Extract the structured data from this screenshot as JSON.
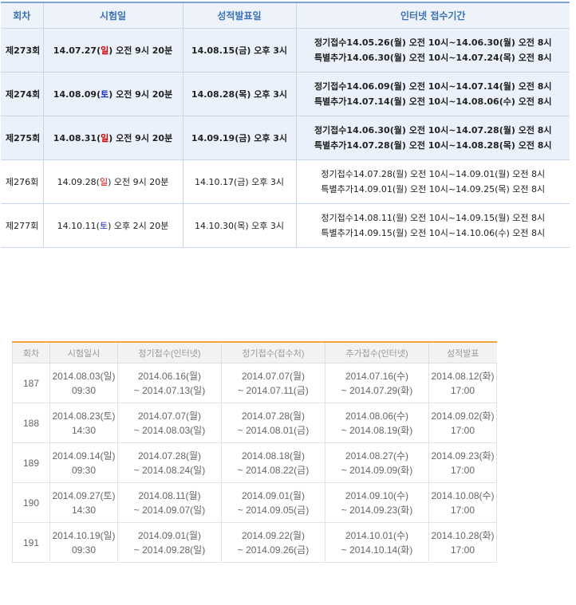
{
  "table1": {
    "headers": [
      "회차",
      "시험일",
      "성적발표일",
      "인터넷 접수기간"
    ],
    "rows": [
      {
        "round": "제273회",
        "exam_pre": "14.07.27(",
        "exam_day": "일",
        "exam_day_color": "red",
        "exam_post": ") 오전 9시 20분",
        "result": "14.08.15(금) 오후 3시",
        "reg1": "정기접수14.05.26(월) 오전 10시~14.06.30(월) 오전 8시",
        "reg2": "특별추가14.06.30(월) 오전 10시~14.07.24(목) 오전 8시",
        "highlight": true
      },
      {
        "round": "제274회",
        "exam_pre": "14.08.09(",
        "exam_day": "토",
        "exam_day_color": "blue",
        "exam_post": ") 오전 9시 20분",
        "result": "14.08.28(목) 오후 3시",
        "reg1": "정기접수14.06.09(월) 오전 10시~14.07.14(월) 오전 8시",
        "reg2": "특별추가14.07.14(월) 오전 10시~14.08.06(수) 오전 8시",
        "highlight": true
      },
      {
        "round": "제275회",
        "exam_pre": "14.08.31(",
        "exam_day": "일",
        "exam_day_color": "red",
        "exam_post": ") 오전 9시 20분",
        "result": "14.09.19(금) 오후 3시",
        "reg1": "정기접수14.06.30(월) 오전 10시~14.07.28(월) 오전 8시",
        "reg2": "특별추가14.07.28(월) 오전 10시~14.08.28(목) 오전 8시",
        "highlight": true
      },
      {
        "round": "제276회",
        "exam_pre": "14.09.28(",
        "exam_day": "일",
        "exam_day_color": "red",
        "exam_post": ") 오전 9시 20분",
        "result": "14.10.17(금) 오후 3시",
        "reg1": "정기접수14.07.28(월) 오전 10시~14.09.01(월) 오전 8시",
        "reg2": "특별추가14.09.01(월) 오전 10시~14.09.25(목) 오전 8시",
        "highlight": false
      },
      {
        "round": "제277회",
        "exam_pre": "14.10.11(",
        "exam_day": "토",
        "exam_day_color": "blue",
        "exam_post": ") 오후 2시 20분",
        "result": "14.10.30(목) 오후 3시",
        "reg1": "정기접수14.08.11(월) 오전 10시~14.09.15(월) 오전 8시",
        "reg2": "특별추가14.09.15(월) 오전 10시~14.10.06(수) 오전 8시",
        "highlight": false
      }
    ]
  },
  "table2": {
    "headers": [
      "회차",
      "시험일시",
      "정기접수(인터넷)",
      "정기접수(접수처)",
      "추가접수(인터넷)",
      "성적발표"
    ],
    "rows": [
      {
        "round": "187",
        "exam_date": "2014.08.03(일)",
        "exam_time": "09:30",
        "reg_net_1": "2014.06.16(월)",
        "reg_net_2": "~ 2014.07.13(일)",
        "reg_off_1": "2014.07.07(월)",
        "reg_off_2": "~ 2014.07.11(금)",
        "add_net_1": "2014.07.16(수)",
        "add_net_2": "~ 2014.07.29(화)",
        "result_date": "2014.08.12(화)",
        "result_time": "17:00"
      },
      {
        "round": "188",
        "exam_date": "2014.08.23(토)",
        "exam_time": "14:30",
        "reg_net_1": "2014.07.07(월)",
        "reg_net_2": "~ 2014.08.03(일)",
        "reg_off_1": "2014.07.28(월)",
        "reg_off_2": "~ 2014.08.01(금)",
        "add_net_1": "2014.08.06(수)",
        "add_net_2": "~ 2014.08.19(화)",
        "result_date": "2014.09.02(화)",
        "result_time": "17:00"
      },
      {
        "round": "189",
        "exam_date": "2014.09.14(일)",
        "exam_time": "09:30",
        "reg_net_1": "2014.07.28(월)",
        "reg_net_2": "~ 2014.08.24(일)",
        "reg_off_1": "2014.08.18(월)",
        "reg_off_2": "~ 2014.08.22(금)",
        "add_net_1": "2014.08.27(수)",
        "add_net_2": "~ 2014.09.09(화)",
        "result_date": "2014.09.23(화)",
        "result_time": "17:00"
      },
      {
        "round": "190",
        "exam_date": "2014.09.27(토)",
        "exam_time": "14:30",
        "reg_net_1": "2014.08.11(월)",
        "reg_net_2": "~ 2014.09.07(일)",
        "reg_off_1": "2014.09.01(월)",
        "reg_off_2": "~ 2014.09.05(금)",
        "add_net_1": "2014.09.10(수)",
        "add_net_2": "~ 2014.09.23(화)",
        "result_date": "2014.10.08(수)",
        "result_time": "17:00"
      },
      {
        "round": "191",
        "exam_date": "2014.10.19(일)",
        "exam_time": "09:30",
        "reg_net_1": "2014.09.01(월)",
        "reg_net_2": "~ 2014.09.28(일)",
        "reg_off_1": "2014.09.22(월)",
        "reg_off_2": "~ 2014.09.26(금)",
        "add_net_1": "2014.10.01(수)",
        "add_net_2": "~ 2014.10.14(화)",
        "result_date": "2014.10.28(화)",
        "result_time": "17:00"
      }
    ]
  }
}
